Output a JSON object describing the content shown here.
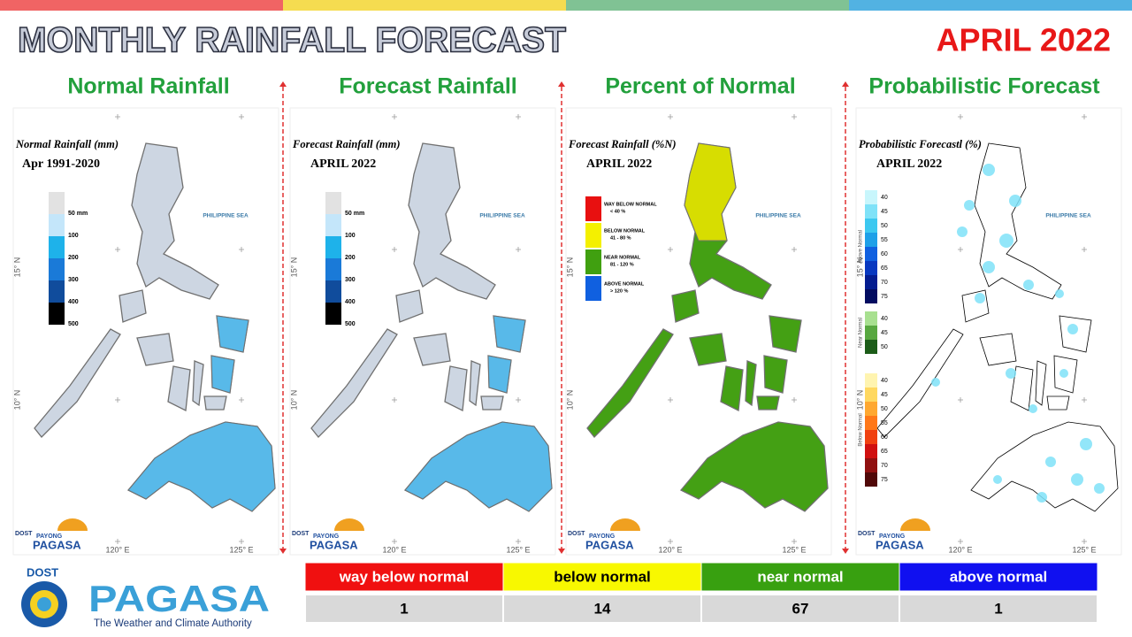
{
  "header": {
    "title": "MONTHLY RAINFALL FORECAST",
    "period": "APRIL 2022"
  },
  "panels": [
    {
      "heading": "Normal Rainfall",
      "map_title": "Normal Rainfall (mm)",
      "map_subtitle": "Apr 1991-2020",
      "land_color": "#cdd6e2",
      "highlight_color": "#4cb6ea",
      "legend": [
        {
          "label": "50 mm",
          "color": "#e2e2e2"
        },
        {
          "label": "100",
          "color": "#c4e6fa"
        },
        {
          "label": "200",
          "color": "#1eb2ea"
        },
        {
          "label": "300",
          "color": "#1a7ad8"
        },
        {
          "label": "400",
          "color": "#104c9c"
        },
        {
          "label": "500",
          "color": "#000000"
        }
      ]
    },
    {
      "heading": "Forecast Rainfall",
      "map_title": "Forecast Rainfall (mm)",
      "map_subtitle": "APRIL 2022",
      "land_color": "#cdd6e2",
      "highlight_color": "#4cb6ea",
      "legend": [
        {
          "label": "50 mm",
          "color": "#e2e2e2"
        },
        {
          "label": "100",
          "color": "#c4e6fa"
        },
        {
          "label": "200",
          "color": "#1eb2ea"
        },
        {
          "label": "300",
          "color": "#1a7ad8"
        },
        {
          "label": "400",
          "color": "#104c9c"
        },
        {
          "label": "500",
          "color": "#000000"
        }
      ]
    },
    {
      "heading": "Percent of Normal",
      "map_title": "Forecast Rainfall (%N)",
      "map_subtitle": "APRIL 2022",
      "land_color": "#44a014",
      "highlight_color": "#e8e400",
      "legend": [
        {
          "label": "WAY BELOW NORMAL",
          "range": "< 40 %",
          "color": "#e81010"
        },
        {
          "label": "BELOW NORMAL",
          "range": "41 - 80 %",
          "color": "#f4f000"
        },
        {
          "label": "NEAR NORMAL",
          "range": "81 - 120 %",
          "color": "#40a010"
        },
        {
          "label": "ABOVE NORMAL",
          "range": "> 120 %",
          "color": "#1060e0"
        }
      ]
    },
    {
      "heading": "Probabilistic Forecast",
      "map_title": "Probabilistic Forecastl (%)",
      "map_subtitle": "APRIL 2022",
      "land_color": "#ffffff",
      "highlight_color": "#7fe2f8",
      "legend_groups": [
        {
          "name": "Above Normal",
          "levels": [
            40,
            45,
            50,
            55,
            60,
            65,
            70,
            75
          ],
          "colors": [
            "#c8f6fc",
            "#7fe2f8",
            "#3cc8f0",
            "#1ea0e8",
            "#1060e0",
            "#0838c0",
            "#041c90",
            "#020c60"
          ]
        },
        {
          "name": "Near Normal",
          "levels": [
            40,
            45,
            50
          ],
          "colors": [
            "#a8e090",
            "#58a840",
            "#1c5c18"
          ]
        },
        {
          "name": "Below Normal",
          "levels": [
            40,
            45,
            50,
            55,
            60,
            65,
            70,
            75
          ],
          "colors": [
            "#fff4b0",
            "#ffd860",
            "#ffa830",
            "#ff7818",
            "#f04010",
            "#d01010",
            "#901010",
            "#500808"
          ]
        }
      ]
    }
  ],
  "sea_label": "PHILIPPINE SEA",
  "grid_labels": {
    "lon": [
      "120° E",
      "125° E"
    ],
    "lat": [
      "15° N",
      "10° N"
    ]
  },
  "map_brand": {
    "agency": "DOST",
    "line1": "PAYONG",
    "line2": "PAGASA"
  },
  "summary_table": {
    "headers": [
      "way below normal",
      "below normal",
      "near normal",
      "above normal"
    ],
    "header_colors": [
      "#f01010",
      "#f8f800",
      "#38a010",
      "#1010f0"
    ],
    "header_text_colors": [
      "#ffffff",
      "#000000",
      "#ffffff",
      "#ffffff"
    ],
    "counts": [
      1,
      14,
      67,
      1
    ]
  },
  "logo": {
    "agency": "DOST",
    "name": "PAGASA",
    "tagline": "The Weather and Climate Authority"
  }
}
